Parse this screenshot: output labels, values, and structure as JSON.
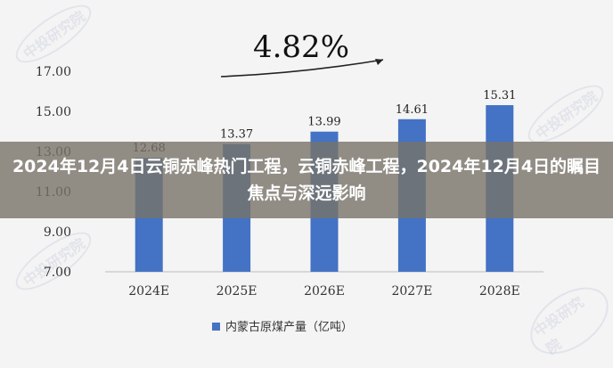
{
  "overlay": {
    "title": "2024年12月4日云铜赤峰热门工程，云铜赤峰工程，2024年12月4日的瞩目焦点与深远影响"
  },
  "chart_data": {
    "type": "bar",
    "categories": [
      "2024E",
      "2025E",
      "2026E",
      "2027E",
      "2028E"
    ],
    "series": [
      {
        "name": "内蒙古原煤产量（亿吨）",
        "values": [
          12.68,
          13.37,
          13.99,
          14.61,
          15.31
        ]
      }
    ],
    "data_labels": [
      "12.68",
      "13.37",
      "13.99",
      "14.61",
      "15.31"
    ],
    "yticks": [
      "7.00",
      "9.00",
      "11.00",
      "13.00",
      "15.00",
      "17.00"
    ],
    "ylim": [
      7,
      17
    ],
    "annotation": "4.82%",
    "grid": false,
    "legend_position": "bottom",
    "bar_color": "#4472c4"
  }
}
